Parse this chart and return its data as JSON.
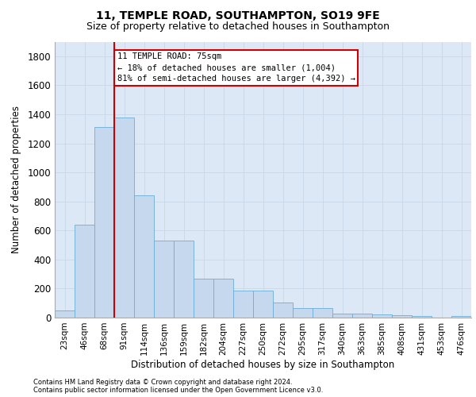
{
  "title1": "11, TEMPLE ROAD, SOUTHAMPTON, SO19 9FE",
  "title2": "Size of property relative to detached houses in Southampton",
  "xlabel": "Distribution of detached houses by size in Southampton",
  "ylabel": "Number of detached properties",
  "footnote1": "Contains HM Land Registry data © Crown copyright and database right 2024.",
  "footnote2": "Contains public sector information licensed under the Open Government Licence v3.0.",
  "categories": [
    "23sqm",
    "46sqm",
    "68sqm",
    "91sqm",
    "114sqm",
    "136sqm",
    "159sqm",
    "182sqm",
    "204sqm",
    "227sqm",
    "250sqm",
    "272sqm",
    "295sqm",
    "317sqm",
    "340sqm",
    "363sqm",
    "385sqm",
    "408sqm",
    "431sqm",
    "453sqm",
    "476sqm"
  ],
  "values": [
    50,
    640,
    1310,
    1380,
    840,
    530,
    530,
    270,
    270,
    185,
    185,
    105,
    65,
    65,
    30,
    30,
    20,
    15,
    10,
    0,
    10
  ],
  "bar_color": "#c5d8ed",
  "bar_edge_color": "#6baed6",
  "vline_x": 2.5,
  "vline_color": "#cc0000",
  "annotation_title": "11 TEMPLE ROAD: 75sqm",
  "annotation_line1": "← 18% of detached houses are smaller (1,004)",
  "annotation_line2": "81% of semi-detached houses are larger (4,392) →",
  "annotation_box_color": "#cc0000",
  "ylim": [
    0,
    1900
  ],
  "yticks": [
    0,
    200,
    400,
    600,
    800,
    1000,
    1200,
    1400,
    1600,
    1800
  ],
  "grid_color": "#c8d8e8",
  "bg_color": "#dce8f5",
  "title1_fontsize": 10,
  "title2_fontsize": 9
}
